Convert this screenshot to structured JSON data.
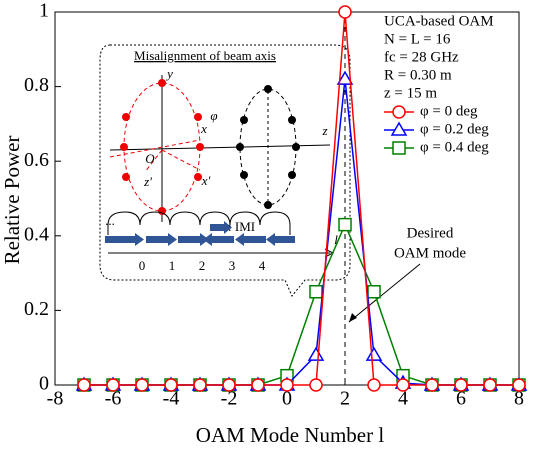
{
  "chart_data": {
    "type": "line",
    "x_label": "OAM Mode Number l",
    "y_label": "Relative Power",
    "x": [
      -7,
      -6,
      -5,
      -4,
      -3,
      -2,
      -1,
      0,
      1,
      2,
      3,
      4,
      5,
      6,
      7,
      8
    ],
    "series": [
      {
        "name": "φ = 0 deg",
        "color": "#ff0000",
        "marker": "circle",
        "values": [
          0,
          0,
          0,
          0,
          0,
          0,
          0,
          0,
          0,
          1,
          0,
          0,
          0,
          0,
          0,
          0
        ]
      },
      {
        "name": "φ = 0.2 deg",
        "color": "#0000ff",
        "marker": "triangle",
        "values": [
          0,
          0,
          0,
          0,
          0,
          0,
          0,
          0,
          0.08,
          0.82,
          0.08,
          0.005,
          0,
          0,
          0,
          0
        ]
      },
      {
        "name": "φ = 0.4 deg",
        "color": "#008000",
        "marker": "square",
        "values": [
          0,
          0,
          0,
          0,
          0,
          0,
          0,
          0.025,
          0.25,
          0.43,
          0.25,
          0.025,
          0,
          0,
          0,
          0
        ]
      }
    ],
    "xlim": [
      -8,
      8
    ],
    "xticks": [
      -8,
      -6,
      -4,
      -2,
      0,
      2,
      4,
      6,
      8
    ],
    "ylim": [
      0,
      1
    ],
    "yticks": [
      0,
      0.2,
      0.4,
      0.6,
      0.8,
      1
    ],
    "info": [
      "UCA-based OAM",
      "N = L = 16",
      "fc = 28 GHz",
      "R = 0.30 m",
      "z = 15 m"
    ],
    "annotation": {
      "lines": [
        "Desired",
        "OAM mode"
      ],
      "x": 2
    },
    "inset": {
      "title": "Misalignment of beam axis",
      "legend": ": IMI",
      "labels": [
        "y",
        "x",
        "φ",
        "z",
        "O",
        "z'",
        "x'",
        "l",
        "0",
        "1",
        "2",
        "3",
        "4",
        "..."
      ]
    }
  }
}
